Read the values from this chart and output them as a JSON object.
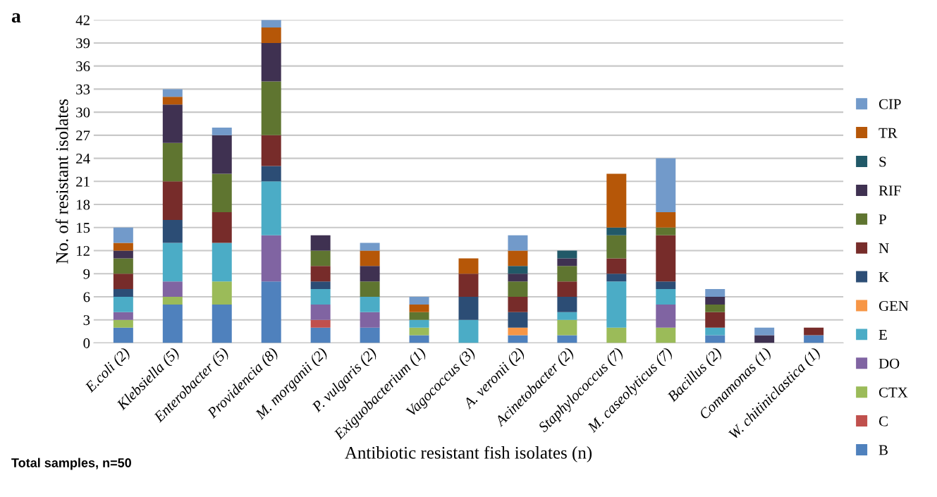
{
  "chart_data": {
    "type": "bar",
    "stacked": true,
    "xlabel": "Antibiotic resistant fish isolates (n)",
    "ylabel": "No. of resistant isolates",
    "categories": [
      "E.coli (2)",
      "Klebsiella (5)",
      "Enterobacter (5)",
      "Providencia (8)",
      "M. morganii (2)",
      "P. vulgaris (2)",
      "Exiguobacterium (1)",
      "Vagococcus (3)",
      "A. veronii (2)",
      "Acinetobacter (2)",
      "Staphylococcus (7)",
      "M. caseolyticus (7)",
      "Bacillus (2)",
      "Comamonas (1)",
      "W. chitiniclastica (1)"
    ],
    "series": [
      {
        "name": "B",
        "color": "#4f81bd",
        "values": [
          2,
          5,
          5,
          8,
          2,
          2,
          1,
          0,
          1,
          1,
          0,
          0,
          1,
          0,
          1
        ]
      },
      {
        "name": "C",
        "color": "#c0504d",
        "values": [
          0,
          0,
          0,
          0,
          1,
          0,
          0,
          0,
          0,
          0,
          0,
          0,
          0,
          0,
          0
        ]
      },
      {
        "name": "CTX",
        "color": "#9bbb59",
        "values": [
          1,
          1,
          3,
          0,
          0,
          0,
          1,
          0,
          0,
          2,
          2,
          2,
          0,
          0,
          0
        ]
      },
      {
        "name": "DO",
        "color": "#8064a2",
        "values": [
          1,
          2,
          0,
          6,
          2,
          2,
          0,
          0,
          0,
          0,
          0,
          3,
          0,
          0,
          0
        ]
      },
      {
        "name": "E",
        "color": "#4bacc6",
        "values": [
          2,
          5,
          5,
          7,
          2,
          2,
          1,
          3,
          0,
          1,
          6,
          2,
          1,
          0,
          0
        ]
      },
      {
        "name": "GEN",
        "color": "#f79646",
        "values": [
          0,
          0,
          0,
          0,
          0,
          0,
          0,
          0,
          1,
          0,
          0,
          0,
          0,
          0,
          0
        ]
      },
      {
        "name": "K",
        "color": "#2c4d75",
        "values": [
          1,
          3,
          0,
          2,
          1,
          0,
          0,
          3,
          2,
          2,
          1,
          1,
          0,
          0,
          0
        ]
      },
      {
        "name": "N",
        "color": "#772c2a",
        "values": [
          2,
          5,
          4,
          4,
          2,
          0,
          0,
          3,
          2,
          2,
          2,
          6,
          2,
          0,
          1
        ]
      },
      {
        "name": "P",
        "color": "#5f7530",
        "values": [
          2,
          5,
          5,
          7,
          2,
          2,
          1,
          0,
          2,
          2,
          3,
          1,
          1,
          0,
          0
        ]
      },
      {
        "name": "RIF",
        "color": "#3f3151",
        "values": [
          1,
          5,
          5,
          5,
          2,
          2,
          0,
          0,
          1,
          1,
          0,
          0,
          1,
          1,
          0
        ]
      },
      {
        "name": "S",
        "color": "#215968",
        "values": [
          0,
          0,
          0,
          0,
          0,
          0,
          0,
          0,
          1,
          1,
          1,
          0,
          0,
          0,
          0
        ]
      },
      {
        "name": "TR",
        "color": "#b65708",
        "values": [
          1,
          1,
          0,
          2,
          0,
          2,
          1,
          2,
          2,
          0,
          7,
          2,
          0,
          0,
          0
        ]
      },
      {
        "name": "CIP",
        "color": "#729aca",
        "values": [
          2,
          1,
          1,
          1,
          0,
          1,
          1,
          0,
          2,
          0,
          0,
          7,
          1,
          1,
          0
        ]
      }
    ],
    "ylim": [
      0,
      42
    ],
    "yticks": [
      0,
      3,
      6,
      9,
      12,
      15,
      18,
      21,
      24,
      27,
      30,
      33,
      36,
      39,
      42
    ],
    "grid": "y",
    "legend": "right",
    "annotations": [
      "a",
      "Total samples, n=50"
    ]
  }
}
